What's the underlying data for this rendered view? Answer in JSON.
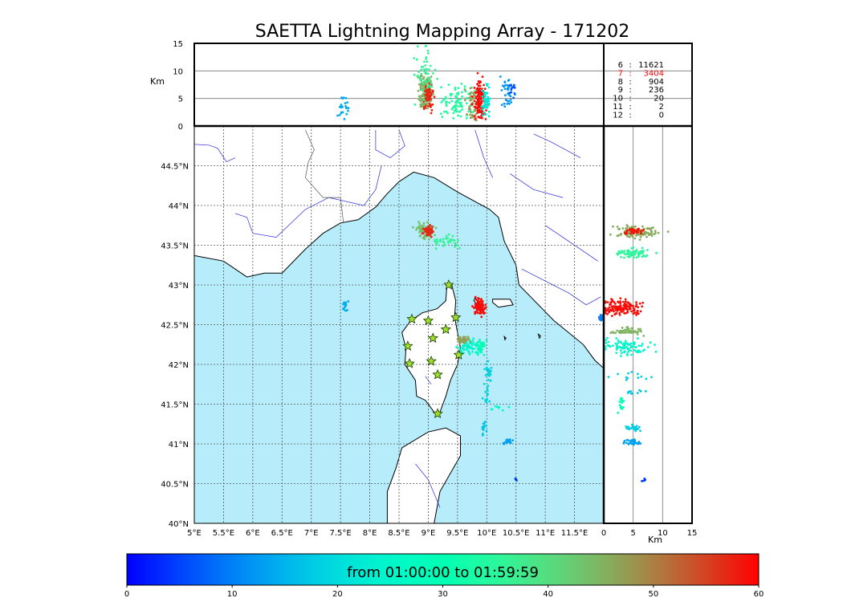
{
  "title": "SAETTA Lightning Mapping Array - 171202",
  "colors": {
    "sea": "#b7ecfb",
    "land": "#ffffff",
    "coast": "#000000",
    "river": "#2a2ae0",
    "border": "#555555",
    "grid": "#555555",
    "station": "#9de02b",
    "count_highlight": "#ff0000"
  },
  "chart_data": [
    {
      "type": "scatter",
      "name": "plan-view",
      "xlim": [
        5,
        12
      ],
      "ylim": [
        40,
        45
      ],
      "grid": true,
      "xticks": [
        {
          "v": 5,
          "label": "5°E"
        },
        {
          "v": 5.5,
          "label": "5.5°E"
        },
        {
          "v": 6,
          "label": "6°E"
        },
        {
          "v": 6.5,
          "label": "6.5°E"
        },
        {
          "v": 7,
          "label": "7°E"
        },
        {
          "v": 7.5,
          "label": "7.5°E"
        },
        {
          "v": 8,
          "label": "8°E"
        },
        {
          "v": 8.5,
          "label": "8.5°E"
        },
        {
          "v": 9,
          "label": "9°E"
        },
        {
          "v": 9.5,
          "label": "9.5°E"
        },
        {
          "v": 10,
          "label": "10°E"
        },
        {
          "v": 10.5,
          "label": "10.5°E"
        },
        {
          "v": 11,
          "label": "11°E"
        },
        {
          "v": 11.5,
          "label": "11.5°E"
        }
      ],
      "yticks": [
        {
          "v": 40,
          "label": "40°N"
        },
        {
          "v": 40.5,
          "label": "40.5°N"
        },
        {
          "v": 41,
          "label": "41°N"
        },
        {
          "v": 41.5,
          "label": "41.5°N"
        },
        {
          "v": 42,
          "label": "42°N"
        },
        {
          "v": 42.5,
          "label": "42.5°N"
        },
        {
          "v": 43,
          "label": "43°N"
        },
        {
          "v": 43.5,
          "label": "43.5°N"
        },
        {
          "v": 44,
          "label": "44°N"
        },
        {
          "v": 44.5,
          "label": "44.5°N"
        }
      ],
      "stations": [
        {
          "lon": 9.35,
          "lat": 43.0
        },
        {
          "lon": 8.72,
          "lat": 42.57
        },
        {
          "lon": 9.0,
          "lat": 42.55
        },
        {
          "lon": 9.47,
          "lat": 42.59
        },
        {
          "lon": 9.3,
          "lat": 42.44
        },
        {
          "lon": 9.08,
          "lat": 42.33
        },
        {
          "lon": 8.65,
          "lat": 42.23
        },
        {
          "lon": 9.52,
          "lat": 42.12
        },
        {
          "lon": 8.68,
          "lat": 42.01
        },
        {
          "lon": 9.05,
          "lat": 42.04
        },
        {
          "lon": 9.16,
          "lat": 41.87
        },
        {
          "lon": 9.16,
          "lat": 41.38
        }
      ],
      "clusters": [
        {
          "lon": 8.95,
          "lat": 43.68,
          "slon": 0.08,
          "slat": 0.05,
          "t": 44,
          "n": 70
        },
        {
          "lon": 9.0,
          "lat": 43.68,
          "slon": 0.04,
          "slat": 0.03,
          "t": 57,
          "n": 45
        },
        {
          "lon": 9.3,
          "lat": 43.55,
          "slon": 0.15,
          "slat": 0.04,
          "t": 36,
          "n": 35
        },
        {
          "lon": 7.6,
          "lat": 42.72,
          "slon": 0.03,
          "slat": 0.03,
          "t": 14,
          "n": 18
        },
        {
          "lon": 9.88,
          "lat": 42.72,
          "slon": 0.05,
          "slat": 0.05,
          "t": 59,
          "n": 90
        },
        {
          "lon": 9.7,
          "lat": 42.22,
          "slon": 0.12,
          "slat": 0.05,
          "t": 25,
          "n": 70
        },
        {
          "lon": 9.6,
          "lat": 42.3,
          "slon": 0.05,
          "slat": 0.03,
          "t": 47,
          "n": 35
        },
        {
          "lon": 9.9,
          "lat": 42.22,
          "slon": 0.04,
          "slat": 0.04,
          "t": 30,
          "n": 25
        },
        {
          "lon": 10.0,
          "lat": 41.75,
          "slon": 0.03,
          "slat": 0.15,
          "t": 19,
          "n": 25
        },
        {
          "lon": 10.05,
          "lat": 41.9,
          "slon": 0.02,
          "slat": 0.05,
          "t": 18,
          "n": 12
        },
        {
          "lon": 9.95,
          "lat": 41.2,
          "slon": 0.02,
          "slat": 0.04,
          "t": 17,
          "n": 14
        },
        {
          "lon": 10.35,
          "lat": 41.03,
          "slon": 0.05,
          "slat": 0.02,
          "t": 13,
          "n": 16
        },
        {
          "lon": 10.2,
          "lat": 41.45,
          "slon": 0.08,
          "slat": 0.03,
          "t": 26,
          "n": 8
        },
        {
          "lon": 10.5,
          "lat": 40.55,
          "slon": 0.01,
          "slat": 0.01,
          "t": 4,
          "n": 4
        },
        {
          "lon": 11.97,
          "lat": 42.59,
          "slon": 0.02,
          "slat": 0.02,
          "t": 10,
          "n": 25
        }
      ],
      "sea_polygon": [
        [
          5,
          43.37
        ],
        [
          5.5,
          43.3
        ],
        [
          5.9,
          43.1
        ],
        [
          6.2,
          43.15
        ],
        [
          6.5,
          43.15
        ],
        [
          6.9,
          43.45
        ],
        [
          7.2,
          43.65
        ],
        [
          7.5,
          43.78
        ],
        [
          7.8,
          43.82
        ],
        [
          8.1,
          43.98
        ],
        [
          8.3,
          44.15
        ],
        [
          8.5,
          44.3
        ],
        [
          8.75,
          44.42
        ],
        [
          9.1,
          44.35
        ],
        [
          9.5,
          44.17
        ],
        [
          9.8,
          44.05
        ],
        [
          10.05,
          43.95
        ],
        [
          10.2,
          43.85
        ],
        [
          10.3,
          43.55
        ],
        [
          10.5,
          43.25
        ],
        [
          10.55,
          43.0
        ],
        [
          10.75,
          42.85
        ],
        [
          10.95,
          42.7
        ],
        [
          11.15,
          42.55
        ],
        [
          11.4,
          42.4
        ],
        [
          11.65,
          42.25
        ],
        [
          11.85,
          42.05
        ],
        [
          12,
          41.95
        ],
        [
          12,
          40
        ],
        [
          9.1,
          40
        ],
        [
          9.2,
          40.4
        ],
        [
          9.55,
          40.85
        ],
        [
          9.55,
          41.1
        ],
        [
          9.3,
          41.2
        ],
        [
          9.0,
          41.15
        ],
        [
          8.55,
          40.95
        ],
        [
          8.45,
          40.7
        ],
        [
          8.3,
          40.4
        ],
        [
          8.3,
          40
        ],
        [
          5,
          40
        ]
      ],
      "corsica_polygon": [
        [
          9.4,
          43.0
        ],
        [
          9.47,
          42.8
        ],
        [
          9.45,
          42.6
        ],
        [
          9.55,
          42.2
        ],
        [
          9.5,
          42.0
        ],
        [
          9.38,
          41.8
        ],
        [
          9.3,
          41.6
        ],
        [
          9.2,
          41.4
        ],
        [
          9.1,
          41.4
        ],
        [
          8.95,
          41.55
        ],
        [
          8.8,
          41.6
        ],
        [
          8.78,
          41.8
        ],
        [
          8.6,
          42.0
        ],
        [
          8.62,
          42.2
        ],
        [
          8.55,
          42.4
        ],
        [
          8.7,
          42.55
        ],
        [
          8.9,
          42.65
        ],
        [
          9.15,
          42.7
        ],
        [
          9.3,
          42.8
        ],
        [
          9.32,
          43.0
        ]
      ],
      "islands": [
        [
          [
            9.8,
            42.84
          ],
          [
            9.85,
            42.8
          ],
          [
            9.83,
            42.76
          ],
          [
            9.78,
            42.8
          ]
        ],
        [
          [
            10.1,
            42.82
          ],
          [
            10.4,
            42.82
          ],
          [
            10.45,
            42.75
          ],
          [
            10.2,
            42.72
          ],
          [
            10.1,
            42.78
          ]
        ],
        [
          [
            10.88,
            42.38
          ],
          [
            10.92,
            42.36
          ],
          [
            10.9,
            42.33
          ]
        ],
        [
          [
            10.3,
            42.35
          ],
          [
            10.33,
            42.33
          ],
          [
            10.31,
            42.31
          ]
        ]
      ],
      "rivers": [
        [
          [
            5,
            44.77
          ],
          [
            5.25,
            44.76
          ],
          [
            5.4,
            44.72
          ],
          [
            5.55,
            44.55
          ],
          [
            5.7,
            44.6
          ]
        ],
        [
          [
            5.7,
            43.9
          ],
          [
            5.9,
            43.85
          ],
          [
            6.0,
            43.65
          ],
          [
            6.4,
            43.6
          ],
          [
            6.9,
            43.95
          ],
          [
            7.3,
            44.1
          ],
          [
            7.9,
            44.0
          ],
          [
            8.1,
            44.2
          ],
          [
            8.2,
            44.5
          ]
        ],
        [
          [
            8.5,
            44.95
          ],
          [
            8.6,
            44.75
          ],
          [
            8.35,
            44.6
          ],
          [
            8.1,
            44.7
          ],
          [
            8.1,
            44.95
          ]
        ],
        [
          [
            9.8,
            44.95
          ],
          [
            9.95,
            44.6
          ],
          [
            10.1,
            44.35
          ]
        ],
        [
          [
            10.4,
            44.4
          ],
          [
            10.8,
            44.2
          ],
          [
            11.3,
            44.1
          ]
        ],
        [
          [
            10.8,
            44.9
          ],
          [
            11.1,
            44.8
          ],
          [
            11.6,
            44.6
          ]
        ],
        [
          [
            11.0,
            43.75
          ],
          [
            11.3,
            43.6
          ],
          [
            11.6,
            43.45
          ],
          [
            11.9,
            43.3
          ]
        ],
        [
          [
            10.6,
            43.2
          ],
          [
            11.0,
            43.05
          ],
          [
            11.4,
            42.9
          ],
          [
            11.7,
            42.75
          ],
          [
            11.95,
            42.85
          ]
        ],
        [
          [
            8.95,
            41.85
          ],
          [
            9.05,
            41.75
          ]
        ],
        [
          [
            8.78,
            40.75
          ],
          [
            9.0,
            40.55
          ],
          [
            9.2,
            40.2
          ]
        ]
      ],
      "borders": [
        [
          [
            6.9,
            44.95
          ],
          [
            7.05,
            44.7
          ],
          [
            6.95,
            44.55
          ],
          [
            6.9,
            44.35
          ],
          [
            7.2,
            44.1
          ],
          [
            7.5,
            44.1
          ],
          [
            7.55,
            43.78
          ]
        ]
      ]
    },
    {
      "type": "scatter",
      "name": "altitude-vs-longitude",
      "ylabel": "Km",
      "xlim": [
        5,
        12
      ],
      "ylim": [
        0,
        15
      ],
      "yticks": [
        0,
        5,
        10,
        15
      ],
      "gridlines_y": [
        5,
        10
      ],
      "clusters": [
        {
          "x": 7.55,
          "z": 3.5,
          "sx": 0.04,
          "sz": 1.2,
          "t": 14,
          "n": 25
        },
        {
          "x": 8.95,
          "z": 6.0,
          "sx": 0.06,
          "sz": 1.8,
          "t": 45,
          "n": 130
        },
        {
          "x": 9.0,
          "z": 5.5,
          "sx": 0.04,
          "sz": 1.2,
          "t": 57,
          "n": 80
        },
        {
          "x": 8.95,
          "z": 9.5,
          "sx": 0.1,
          "sz": 2.2,
          "t": 36,
          "n": 50
        },
        {
          "x": 9.55,
          "z": 4.5,
          "sx": 0.15,
          "sz": 1.5,
          "t": 34,
          "n": 90
        },
        {
          "x": 9.75,
          "z": 4.0,
          "sx": 0.05,
          "sz": 1.5,
          "t": 47,
          "n": 40
        },
        {
          "x": 9.88,
          "z": 4.5,
          "sx": 0.05,
          "sz": 1.8,
          "t": 59,
          "n": 150
        },
        {
          "x": 9.98,
          "z": 5.0,
          "sx": 0.04,
          "sz": 1.5,
          "t": 22,
          "n": 50
        },
        {
          "x": 10.35,
          "z": 6.0,
          "sx": 0.06,
          "sz": 1.5,
          "t": 12,
          "n": 35
        },
        {
          "x": 10.45,
          "z": 7.0,
          "sx": 0.03,
          "sz": 1.0,
          "t": 6,
          "n": 12
        }
      ]
    },
    {
      "type": "scatter",
      "name": "latitude-vs-altitude",
      "xlabel": "Km",
      "xlim": [
        0,
        15
      ],
      "xticks": [
        0,
        5,
        10,
        15
      ],
      "gridlines_x": [
        5,
        10
      ],
      "clusters": [
        {
          "z": 5.5,
          "lat": 43.67,
          "sz": 2.0,
          "slat": 0.04,
          "t": 46,
          "n": 110
        },
        {
          "z": 5.0,
          "lat": 43.68,
          "sz": 0.8,
          "slat": 0.02,
          "t": 58,
          "n": 40
        },
        {
          "z": 5.0,
          "lat": 43.4,
          "sz": 1.5,
          "slat": 0.03,
          "t": 35,
          "n": 70
        },
        {
          "z": 3.0,
          "lat": 42.72,
          "sz": 1.8,
          "slat": 0.05,
          "t": 59,
          "n": 140
        },
        {
          "z": 4.0,
          "lat": 42.42,
          "sz": 1.2,
          "slat": 0.02,
          "t": 45,
          "n": 50
        },
        {
          "z": 3.5,
          "lat": 42.22,
          "sz": 1.8,
          "slat": 0.05,
          "t": 25,
          "n": 90
        },
        {
          "z": 3.0,
          "lat": 41.5,
          "sz": 0.3,
          "slat": 0.05,
          "t": 30,
          "n": 14
        },
        {
          "z": 5.0,
          "lat": 41.2,
          "sz": 0.6,
          "slat": 0.02,
          "t": 18,
          "n": 25
        },
        {
          "z": 5.0,
          "lat": 41.02,
          "sz": 0.7,
          "slat": 0.02,
          "t": 13,
          "n": 30
        },
        {
          "z": 7.0,
          "lat": 40.55,
          "sz": 0.3,
          "slat": 0.01,
          "t": 4,
          "n": 5
        },
        {
          "z": 4.5,
          "lat": 41.85,
          "sz": 2.0,
          "slat": 0.02,
          "t": 18,
          "n": 12
        },
        {
          "z": 4.5,
          "lat": 41.65,
          "sz": 1.0,
          "slat": 0.01,
          "t": 17,
          "n": 10
        }
      ]
    },
    {
      "type": "table",
      "name": "station-count-table",
      "rows": [
        {
          "stations": "6",
          "count": "11621",
          "highlight": false
        },
        {
          "stations": "7",
          "count": "3404",
          "highlight": true
        },
        {
          "stations": "8",
          "count": "904",
          "highlight": false
        },
        {
          "stations": "9",
          "count": "236",
          "highlight": false
        },
        {
          "stations": "10",
          "count": "20",
          "highlight": false
        },
        {
          "stations": "11",
          "count": "2",
          "highlight": false
        },
        {
          "stations": "12",
          "count": "0",
          "highlight": false
        }
      ]
    },
    {
      "type": "colorbar",
      "name": "time-colorbar",
      "label": "from 01:00:00 to 01:59:59",
      "range": [
        0,
        60
      ],
      "ticks": [
        0,
        10,
        20,
        30,
        40,
        50,
        60
      ]
    }
  ]
}
